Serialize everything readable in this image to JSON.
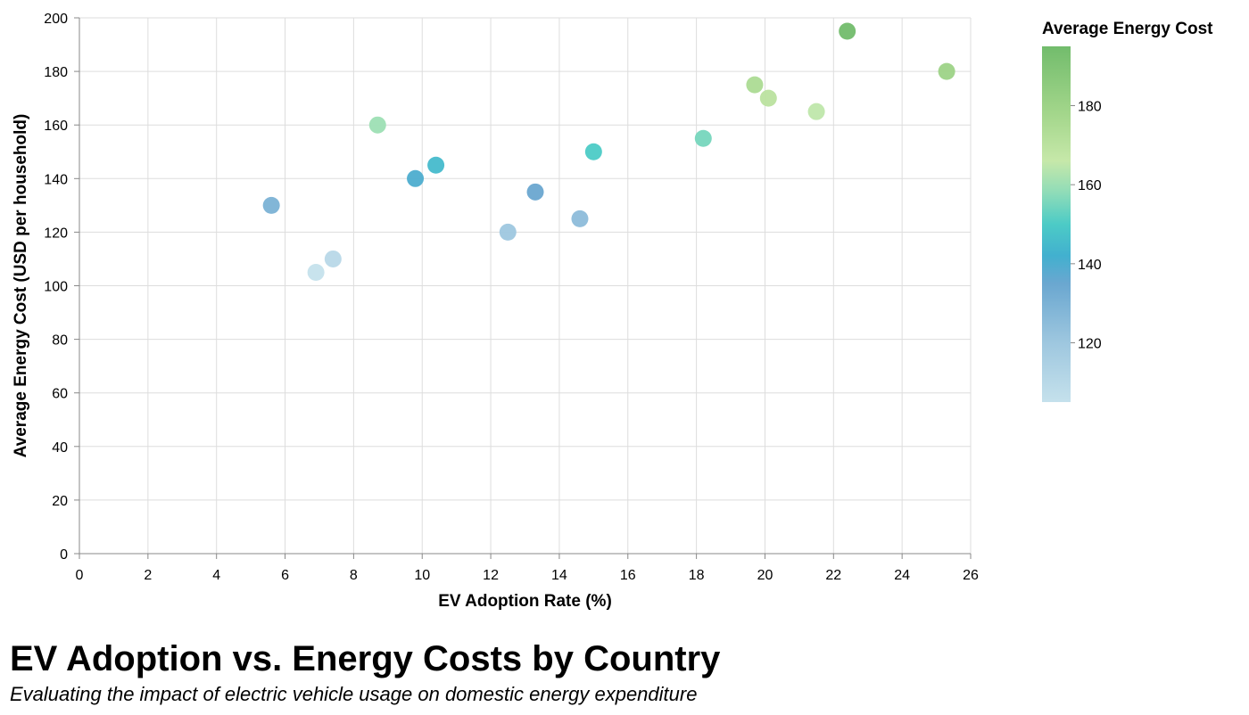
{
  "chart_data": {
    "type": "scatter",
    "title": "EV Adoption vs. Energy Costs by Country",
    "subtitle": "Evaluating the impact of electric vehicle usage on domestic energy expenditure",
    "xlabel": "EV Adoption Rate (%)",
    "ylabel": "Average Energy Cost (USD per household)",
    "xlim": [
      0,
      26
    ],
    "ylim": [
      0,
      200
    ],
    "xticks": [
      0,
      2,
      4,
      6,
      8,
      10,
      12,
      14,
      16,
      18,
      20,
      22,
      24,
      26
    ],
    "yticks": [
      0,
      20,
      40,
      60,
      80,
      100,
      120,
      140,
      160,
      180,
      200
    ],
    "grid": true,
    "legend": {
      "title": "Average Energy Cost",
      "position": "right",
      "ticks": [
        120,
        140,
        160,
        180
      ],
      "domain": [
        105,
        195
      ]
    },
    "color_scale": {
      "stops": [
        {
          "value": 105,
          "color": "#c5e1ec"
        },
        {
          "value": 120,
          "color": "#9ec7df"
        },
        {
          "value": 135,
          "color": "#6aa7d0"
        },
        {
          "value": 142,
          "color": "#42b0cf"
        },
        {
          "value": 150,
          "color": "#4ccbc6"
        },
        {
          "value": 158,
          "color": "#8fdcb8"
        },
        {
          "value": 166,
          "color": "#c6e8a9"
        },
        {
          "value": 178,
          "color": "#a3d68b"
        },
        {
          "value": 195,
          "color": "#72bc6c"
        }
      ]
    },
    "points": [
      {
        "x": 5.6,
        "y": 130
      },
      {
        "x": 6.9,
        "y": 105
      },
      {
        "x": 7.4,
        "y": 110
      },
      {
        "x": 8.7,
        "y": 160
      },
      {
        "x": 9.8,
        "y": 140
      },
      {
        "x": 10.4,
        "y": 145
      },
      {
        "x": 12.5,
        "y": 120
      },
      {
        "x": 13.3,
        "y": 135
      },
      {
        "x": 14.6,
        "y": 125
      },
      {
        "x": 15.0,
        "y": 150
      },
      {
        "x": 18.2,
        "y": 155
      },
      {
        "x": 19.7,
        "y": 175
      },
      {
        "x": 20.1,
        "y": 170
      },
      {
        "x": 21.5,
        "y": 165
      },
      {
        "x": 22.4,
        "y": 195
      },
      {
        "x": 25.3,
        "y": 180
      }
    ]
  }
}
